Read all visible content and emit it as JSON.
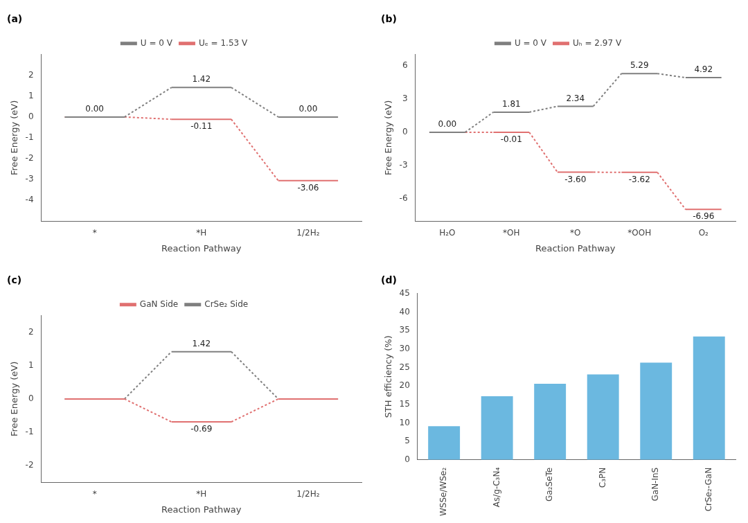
{
  "chart_data": [
    {
      "type": "energy",
      "title": "(a)",
      "xlabel": "Reaction Pathway",
      "ylabel": "Free Energy (eV)",
      "categories": [
        "*",
        "*H",
        "1/2H₂"
      ],
      "series": [
        {
          "name": "U = 0 V",
          "color": "#7f7f7f",
          "values": [
            0.0,
            1.42,
            0.0
          ],
          "value_labels": [
            "0.00",
            "1.42",
            "0.00"
          ]
        },
        {
          "name": "Uₑ = 1.53 V",
          "color": "#e07070",
          "values": [
            0.0,
            -0.11,
            -3.06
          ],
          "value_labels": [
            null,
            "-0.11",
            "-3.06"
          ]
        }
      ],
      "ylim": [
        -5,
        3
      ],
      "yticks": [
        -4,
        -3,
        -2,
        -1,
        0,
        1,
        2
      ],
      "grid": false,
      "legend": "top",
      "data_labels": true
    },
    {
      "type": "energy",
      "title": "(b)",
      "xlabel": "Reaction Pathway",
      "ylabel": "Free Energy (eV)",
      "categories": [
        "H₂O",
        "*OH",
        "*O",
        "*OOH",
        "O₂"
      ],
      "series": [
        {
          "name": "U = 0 V",
          "color": "#7f7f7f",
          "values": [
            0.0,
            1.81,
            2.34,
            5.29,
            4.92
          ],
          "value_labels": [
            "0.00",
            "1.81",
            "2.34",
            "5.29",
            "4.92"
          ]
        },
        {
          "name": "Uₕ = 2.97 V",
          "color": "#e07070",
          "values": [
            0.0,
            -0.01,
            -3.6,
            -3.62,
            -6.96
          ],
          "value_labels": [
            null,
            "-0.01",
            "-3.60",
            "-3.62",
            "-6.96"
          ]
        }
      ],
      "ylim": [
        -8,
        7
      ],
      "yticks": [
        -6,
        -3,
        0,
        3,
        6
      ],
      "grid": false,
      "legend": "top",
      "data_labels": true
    },
    {
      "type": "energy",
      "title": "(c)",
      "xlabel": "Reaction Pathway",
      "ylabel": "Free Energy (eV)",
      "categories": [
        "*",
        "*H",
        "1/2H₂"
      ],
      "series": [
        {
          "name": "GaN Side",
          "color": "#e07070",
          "values": [
            0.0,
            -0.69,
            0.0
          ],
          "value_labels": [
            null,
            "-0.69",
            null
          ]
        },
        {
          "name": "CrSe₂ Side",
          "color": "#7f7f7f",
          "values": [
            0.0,
            1.42,
            0.0
          ],
          "value_labels": [
            null,
            "1.42",
            null
          ]
        }
      ],
      "ylim": [
        -2.5,
        2.5
      ],
      "yticks": [
        -2,
        -1,
        0,
        1,
        2
      ],
      "grid": false,
      "legend": "top",
      "data_labels": true
    },
    {
      "type": "bar",
      "title": "(d)",
      "ylabel": "STH efficiency (%)",
      "categories": [
        "WSSe/WSe₂",
        "As/g-C₃N₄",
        "Ga₂SeTe",
        "C₃PN",
        "GaN-InS",
        "CrSe₂-GaN"
      ],
      "values": [
        9.1,
        17.2,
        20.6,
        23.1,
        26.3,
        33.4
      ],
      "color": "#6bb8e0",
      "ylim": [
        0,
        45
      ],
      "yticks": [
        0,
        5,
        10,
        15,
        20,
        25,
        30,
        35,
        40,
        45
      ],
      "grid": false
    }
  ]
}
